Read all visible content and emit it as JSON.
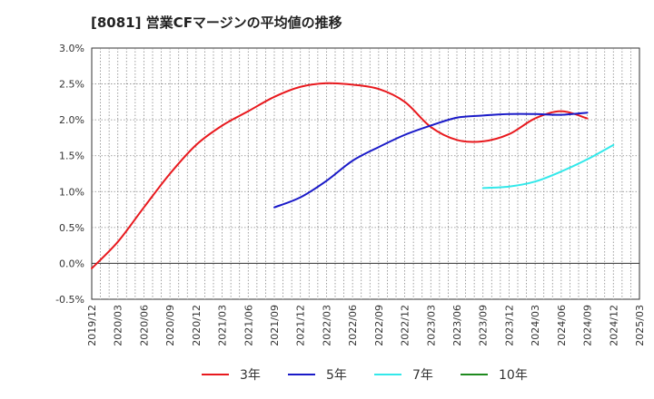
{
  "chart_data": {
    "type": "line",
    "title": "[8081]  営業CFマージンの平均値の推移",
    "xlabel": "",
    "ylabel": "",
    "ylim": [
      -0.5,
      3.0
    ],
    "yticks": [
      -0.5,
      0.0,
      0.5,
      1.0,
      1.5,
      2.0,
      2.5,
      3.0
    ],
    "ytick_labels": [
      "-0.5%",
      "0.0%",
      "0.5%",
      "1.0%",
      "1.5%",
      "2.0%",
      "2.5%",
      "3.0%"
    ],
    "x_categories": [
      "2019/12",
      "2020/03",
      "2020/06",
      "2020/09",
      "2020/12",
      "2021/03",
      "2021/06",
      "2021/09",
      "2021/12",
      "2022/03",
      "2022/06",
      "2022/09",
      "2022/12",
      "2023/03",
      "2023/06",
      "2023/09",
      "2023/12",
      "2024/03",
      "2024/06",
      "2024/09",
      "2024/12",
      "2025/03"
    ],
    "grid": true,
    "legend_position": "bottom",
    "series": [
      {
        "name": "3年",
        "color": "#e8191e",
        "start_index": 0,
        "values": [
          -0.07,
          0.3,
          0.78,
          1.25,
          1.65,
          1.92,
          2.12,
          2.32,
          2.46,
          2.51,
          2.49,
          2.43,
          2.25,
          1.9,
          1.72,
          1.7,
          1.8,
          2.02,
          2.12,
          2.02
        ]
      },
      {
        "name": "5年",
        "color": "#1a1ac8",
        "start_index": 7,
        "values": [
          0.78,
          0.92,
          1.15,
          1.43,
          1.62,
          1.79,
          1.92,
          2.03,
          2.06,
          2.08,
          2.08,
          2.07,
          2.1
        ]
      },
      {
        "name": "7年",
        "color": "#33e8ea",
        "start_index": 15,
        "values": [
          1.05,
          1.07,
          1.14,
          1.28,
          1.45,
          1.65
        ]
      },
      {
        "name": "10年",
        "color": "#1e8a1e",
        "start_index": 0,
        "values": []
      }
    ]
  }
}
